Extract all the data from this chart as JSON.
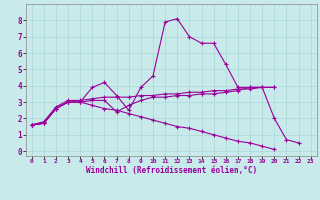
{
  "xlabel": "Windchill (Refroidissement éolien,°C)",
  "background_color": "#c8eaea",
  "line_color": "#990099",
  "grid_color": "#aad8d8",
  "x_values": [
    0,
    1,
    2,
    3,
    4,
    5,
    6,
    7,
    8,
    9,
    10,
    11,
    12,
    13,
    14,
    15,
    16,
    17,
    18,
    19,
    20,
    21,
    22,
    23
  ],
  "series1": [
    1.6,
    1.7,
    2.6,
    3.0,
    3.0,
    3.9,
    4.2,
    3.4,
    2.5,
    3.9,
    4.6,
    7.9,
    8.1,
    7.0,
    6.6,
    6.6,
    5.3,
    3.9,
    3.9,
    3.9,
    2.0,
    0.7,
    0.5,
    null
  ],
  "series2": [
    1.6,
    1.7,
    2.6,
    3.0,
    3.0,
    3.1,
    3.1,
    2.4,
    2.8,
    3.1,
    3.3,
    3.3,
    3.4,
    3.4,
    3.5,
    3.5,
    3.6,
    3.7,
    3.9,
    3.9,
    3.9,
    null,
    null,
    null
  ],
  "series3": [
    1.6,
    1.7,
    2.6,
    3.0,
    3.0,
    2.8,
    2.6,
    2.5,
    2.3,
    2.1,
    1.9,
    1.7,
    1.5,
    1.4,
    1.2,
    1.0,
    0.8,
    0.6,
    0.5,
    0.3,
    0.1,
    null,
    null,
    null
  ],
  "series4": [
    1.6,
    1.8,
    2.7,
    3.1,
    3.1,
    3.2,
    3.3,
    3.3,
    3.3,
    3.4,
    3.4,
    3.5,
    3.5,
    3.6,
    3.6,
    3.7,
    3.7,
    3.8,
    3.8,
    3.9,
    3.9,
    null,
    null,
    null
  ],
  "ylim": [
    -0.3,
    9.0
  ],
  "xlim": [
    -0.5,
    23.5
  ],
  "yticks": [
    0,
    1,
    2,
    3,
    4,
    5,
    6,
    7,
    8
  ],
  "xticks": [
    0,
    1,
    2,
    3,
    4,
    5,
    6,
    7,
    8,
    9,
    10,
    11,
    12,
    13,
    14,
    15,
    16,
    17,
    18,
    19,
    20,
    21,
    22,
    23
  ]
}
